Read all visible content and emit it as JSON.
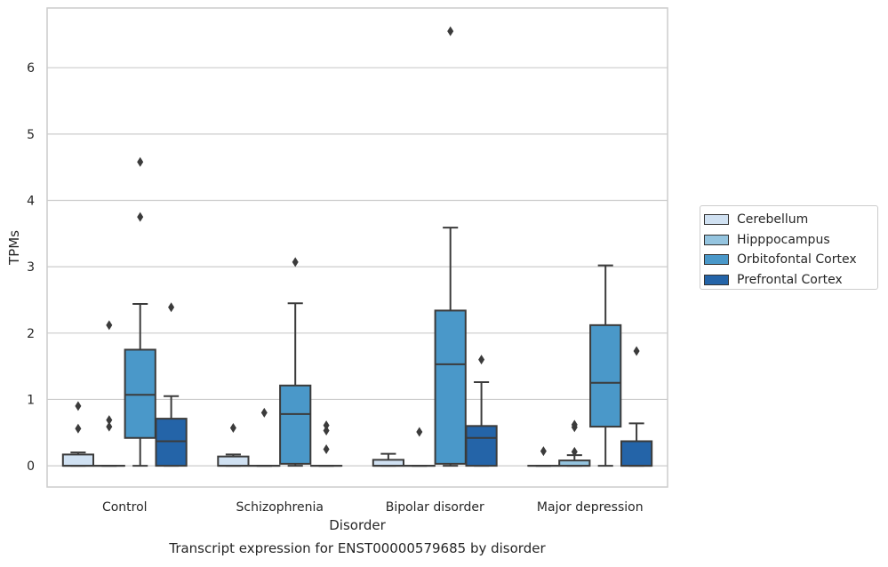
{
  "chart_data": {
    "type": "box",
    "title": "Transcript expression for ENST00000579685 by disorder",
    "xlabel": "Disorder",
    "ylabel": "TPMs",
    "ylim": [
      -0.32,
      6.9
    ],
    "yticks": [
      0,
      1,
      2,
      3,
      4,
      5,
      6
    ],
    "grid": true,
    "legend_position": "right",
    "categories": [
      "Control",
      "Schizophrenia",
      "Bipolar disorder",
      "Major depression"
    ],
    "series": [
      {
        "name": "Cerebellum",
        "color": "#d0e1f2",
        "boxes": [
          {
            "min": 0,
            "q1": 0,
            "median": 0,
            "q3": 0.17,
            "max": 0.2,
            "outliers": [
              0.56,
              0.9
            ]
          },
          {
            "min": 0,
            "q1": 0,
            "median": 0,
            "q3": 0.14,
            "max": 0.17,
            "outliers": [
              0.57
            ]
          },
          {
            "min": 0,
            "q1": 0,
            "median": 0,
            "q3": 0.09,
            "max": 0.18,
            "outliers": []
          },
          {
            "min": 0,
            "q1": 0,
            "median": 0,
            "q3": 0,
            "max": 0,
            "outliers": [
              0.22
            ]
          }
        ]
      },
      {
        "name": "Hipppocampus",
        "color": "#94c4df",
        "boxes": [
          {
            "min": 0,
            "q1": 0,
            "median": 0,
            "q3": 0,
            "max": 0,
            "outliers": [
              0.59,
              0.69,
              2.12
            ]
          },
          {
            "min": 0,
            "q1": 0,
            "median": 0,
            "q3": 0,
            "max": 0,
            "outliers": [
              0.8
            ]
          },
          {
            "min": 0,
            "q1": 0,
            "median": 0,
            "q3": 0,
            "max": 0,
            "outliers": [
              0.51
            ]
          },
          {
            "min": 0,
            "q1": 0,
            "median": 0,
            "q3": 0.08,
            "max": 0.16,
            "outliers": [
              0.21,
              0.58,
              0.62
            ]
          }
        ]
      },
      {
        "name": "Orbitofontal Cortex",
        "color": "#4a98c9",
        "boxes": [
          {
            "min": 0,
            "q1": 0.42,
            "median": 1.07,
            "q3": 1.75,
            "max": 2.44,
            "outliers": [
              3.75,
              4.58
            ]
          },
          {
            "min": 0,
            "q1": 0.03,
            "median": 0.78,
            "q3": 1.21,
            "max": 2.45,
            "outliers": [
              3.07
            ]
          },
          {
            "min": 0,
            "q1": 0.03,
            "median": 1.53,
            "q3": 2.34,
            "max": 3.59,
            "outliers": [
              6.55
            ]
          },
          {
            "min": 0,
            "q1": 0.59,
            "median": 1.25,
            "q3": 2.12,
            "max": 3.02,
            "outliers": []
          }
        ]
      },
      {
        "name": "Prefrontal Cortex",
        "color": "#2464a8",
        "boxes": [
          {
            "min": 0,
            "q1": 0,
            "median": 0.37,
            "q3": 0.71,
            "max": 1.05,
            "outliers": [
              2.39
            ]
          },
          {
            "min": 0,
            "q1": 0,
            "median": 0,
            "q3": 0,
            "max": 0,
            "outliers": [
              0.25,
              0.53,
              0.61
            ]
          },
          {
            "min": 0,
            "q1": 0,
            "median": 0.42,
            "q3": 0.6,
            "max": 1.26,
            "outliers": [
              1.6
            ]
          },
          {
            "min": 0,
            "q1": 0,
            "median": 0,
            "q3": 0.37,
            "max": 0.64,
            "outliers": [
              1.73
            ]
          }
        ]
      }
    ]
  }
}
